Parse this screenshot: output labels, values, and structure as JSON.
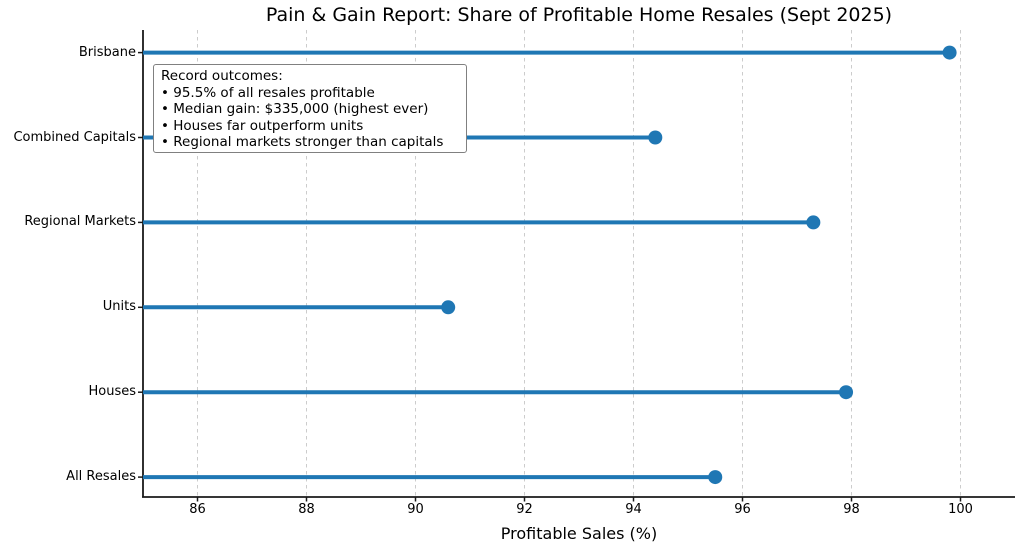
{
  "chart_data": {
    "type": "scatter",
    "subtype": "horizontal_lollipop",
    "title": "Pain & Gain Report: Share of Profitable Home Resales (Sept 2025)",
    "categories": [
      "Brisbane",
      "Combined Capitals",
      "Regional Markets",
      "Units",
      "Houses",
      "All Resales"
    ],
    "values": [
      99.8,
      94.4,
      97.3,
      90.6,
      97.9,
      95.5
    ],
    "xlabel": "Profitable Sales (%)",
    "ylabel": "",
    "xlim": [
      85,
      101
    ],
    "xticks": [
      86,
      88,
      90,
      92,
      94,
      96,
      98,
      100
    ],
    "grid": "vertical-dashed",
    "legend": "none",
    "stem_baseline": 85,
    "marker": "circle",
    "colors": {
      "accent": "#1f77b4",
      "grid": "#cccccc",
      "spine": "#1a1a1a",
      "text": "#000000",
      "annotation_border": "#808080",
      "background": "#ffffff"
    },
    "annotation": {
      "heading": "Record outcomes:",
      "bullets": [
        "• 95.5% of all resales profitable",
        "• Median gain: $335,000 (highest ever)",
        "• Houses far outperform units",
        "• Regional markets stronger than capitals"
      ]
    }
  }
}
